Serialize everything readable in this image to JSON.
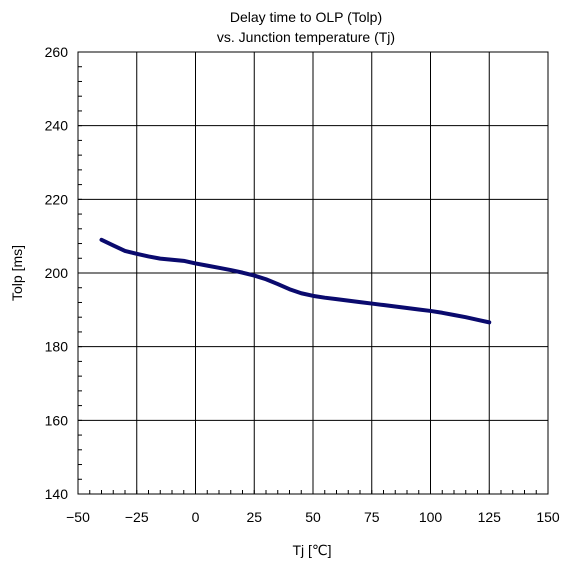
{
  "chart_data": {
    "type": "line",
    "title_line1": "Delay time to OLP (Tolp)",
    "title_line2": "vs. Junction temperature (Tj)",
    "xlabel": "Tj [℃]",
    "ylabel": "Tolp [ms]",
    "xlim": [
      -50,
      150
    ],
    "ylim": [
      140,
      260
    ],
    "x_ticks": [
      -50,
      -25,
      0,
      25,
      50,
      75,
      100,
      125,
      150
    ],
    "x_tick_labels": [
      "−50",
      "−25",
      "0",
      "25",
      "50",
      "75",
      "100",
      "125",
      "150"
    ],
    "y_ticks": [
      140,
      160,
      180,
      200,
      220,
      240,
      260
    ],
    "y_tick_labels": [
      "140",
      "160",
      "180",
      "200",
      "220",
      "240",
      "260"
    ],
    "grid": true,
    "line_color": "#0a0a6e",
    "series": [
      {
        "x": [
          -40,
          -35,
          -30,
          -25,
          -20,
          -15,
          -10,
          -5,
          0,
          5,
          10,
          15,
          20,
          25,
          30,
          35,
          40,
          45,
          50,
          55,
          60,
          65,
          70,
          75,
          80,
          85,
          90,
          95,
          100,
          105,
          110,
          115,
          120,
          125
        ],
        "values": [
          209.0,
          207.5,
          206.0,
          205.2,
          204.5,
          203.9,
          203.6,
          203.3,
          202.6,
          202.0,
          201.4,
          200.8,
          200.1,
          199.3,
          198.3,
          197.0,
          195.6,
          194.5,
          193.8,
          193.3,
          192.9,
          192.5,
          192.1,
          191.7,
          191.3,
          190.9,
          190.5,
          190.1,
          189.7,
          189.2,
          188.6,
          188.0,
          187.3,
          186.6
        ]
      }
    ]
  }
}
